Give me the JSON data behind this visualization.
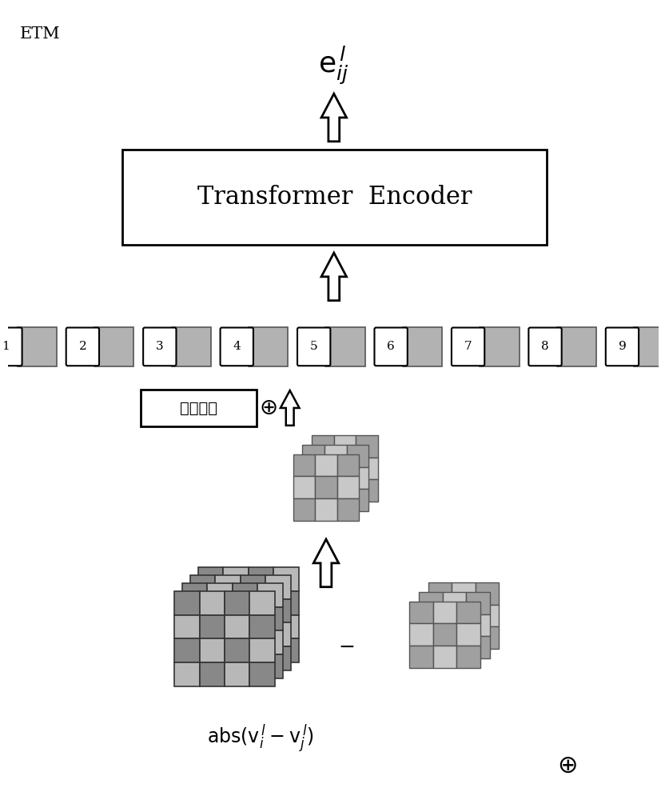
{
  "title": "ETM",
  "bg_color": "#ffffff",
  "transformer_label": "Transformer  Encoder",
  "token_labels": [
    "1",
    "2",
    "3",
    "4",
    "5",
    "6",
    "7",
    "8",
    "9"
  ],
  "token_gray": "#b2b2b2",
  "token_white": "#ffffff",
  "pos_enc_label": "位置编码",
  "grid_light": "#c8c8c8",
  "grid_dark": "#a0a0a0",
  "grid_border": "#555555",
  "grid_light2": "#b8b8b8",
  "grid_dark2": "#888888",
  "grid_border2": "#333333"
}
